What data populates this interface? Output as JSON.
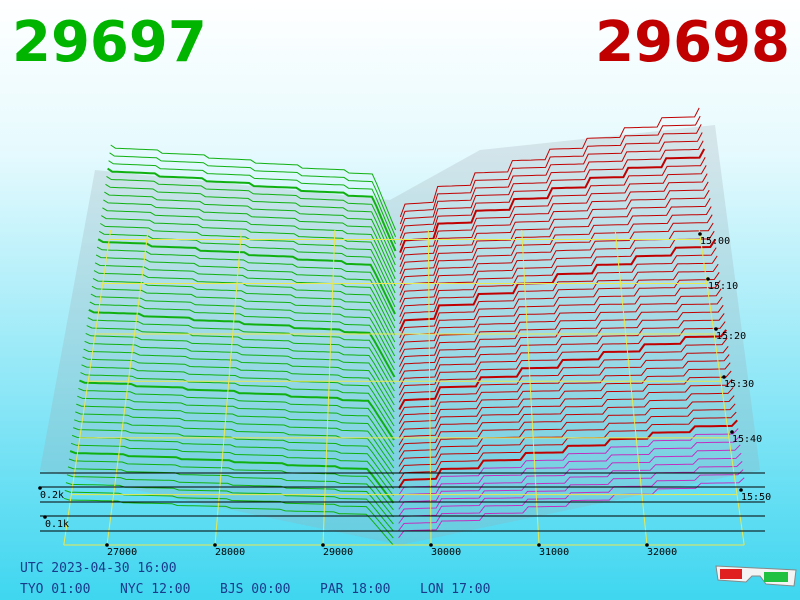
{
  "header": {
    "bid": 29697,
    "ask": 29698
  },
  "price_axis": {
    "ticks": [
      27000,
      28000,
      29000,
      30000,
      31000,
      32000
    ]
  },
  "depth_axis": {
    "ticks": [
      "0.2k",
      "0.1k"
    ]
  },
  "time_axis": {
    "ticks": [
      "15:00",
      "15:10",
      "15:20",
      "15:30",
      "15:40",
      "15:50"
    ]
  },
  "footer": {
    "utc": "UTC 2023-04-30 16:00",
    "clocks": [
      "TYO 01:00",
      "NYC 12:00",
      "BJS 00:00",
      "PAR 18:00",
      "LON 17:00"
    ]
  }
}
